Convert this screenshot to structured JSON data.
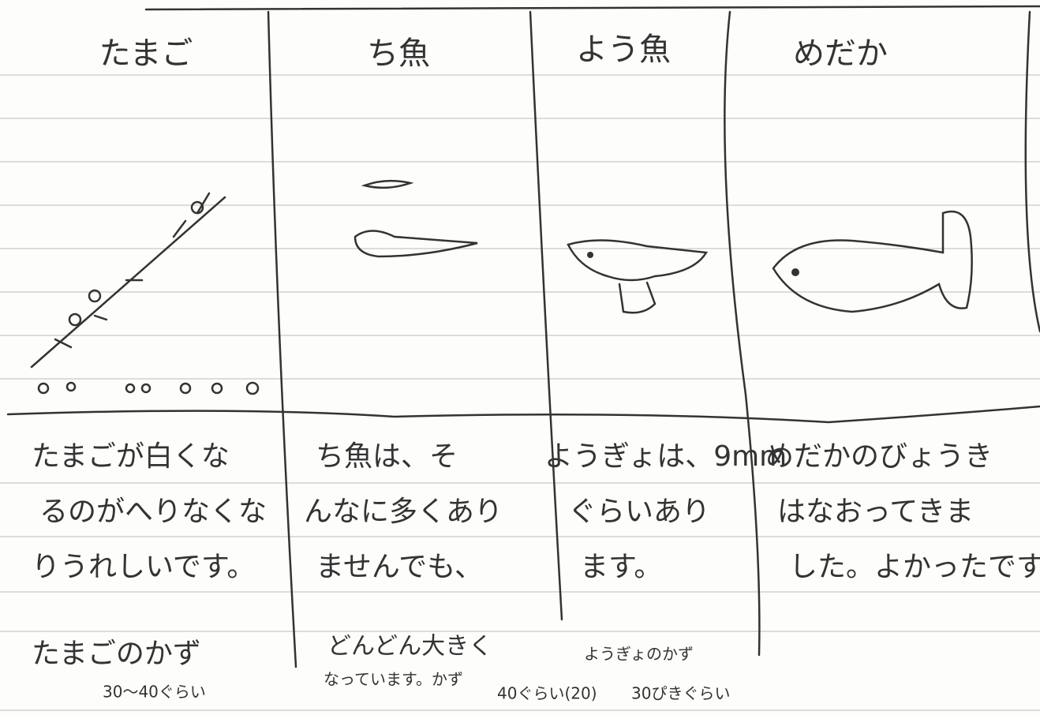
{
  "columns": [
    {
      "heading": "たまご",
      "note": [
        "たまごが白くな",
        "るのがへりなくな",
        "りうれしいです。"
      ]
    },
    {
      "heading": "ち魚",
      "note": [
        "ち魚は、そ",
        "んなに多くあり",
        "ませんでも、"
      ]
    },
    {
      "heading": "よう魚",
      "note": [
        "ようぎょは、9mm",
        "ぐらいあり",
        "ます。"
      ]
    },
    {
      "heading": "めだか",
      "note": [
        "めだかのびょうき",
        "はなおってきま",
        "した。よかったです"
      ]
    }
  ],
  "footer": {
    "egg_count": {
      "label": "たまごのかず",
      "value": "30〜40ぐらい"
    },
    "growth": [
      "どんどん大きく",
      "なっています。かず"
    ],
    "fry_count": "40ぐらい(20)",
    "young_count": {
      "label": "ようぎょのかず",
      "value": "30ぴきぐらい"
    }
  }
}
